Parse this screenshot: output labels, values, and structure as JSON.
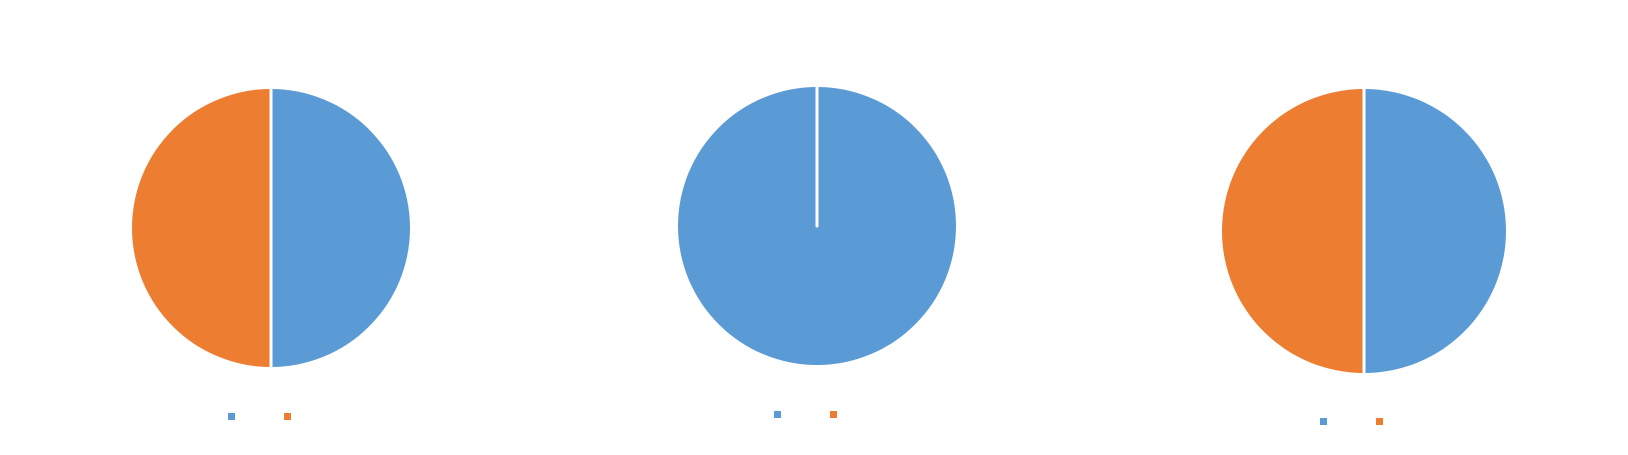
{
  "chart_data": [
    {
      "type": "pie",
      "title": "",
      "colors": [
        "#5b9bd5",
        "#ed7d31"
      ],
      "series": [
        {
          "name": "",
          "color": "#5b9bd5",
          "value": 50
        },
        {
          "name": "",
          "color": "#ed7d31",
          "value": 50
        }
      ],
      "legend_placement": "bottom"
    },
    {
      "type": "pie",
      "title": "",
      "colors": [
        "#5b9bd5",
        "#ed7d31"
      ],
      "series": [
        {
          "name": "",
          "color": "#5b9bd5",
          "value": 100
        },
        {
          "name": "",
          "color": "#ed7d31",
          "value": 0
        }
      ],
      "legend_placement": "bottom"
    },
    {
      "type": "pie",
      "title": "",
      "colors": [
        "#5b9bd5",
        "#ed7d31"
      ],
      "series": [
        {
          "name": "",
          "color": "#5b9bd5",
          "value": 50
        },
        {
          "name": "",
          "color": "#ed7d31",
          "value": 50
        }
      ],
      "legend_placement": "bottom"
    }
  ]
}
